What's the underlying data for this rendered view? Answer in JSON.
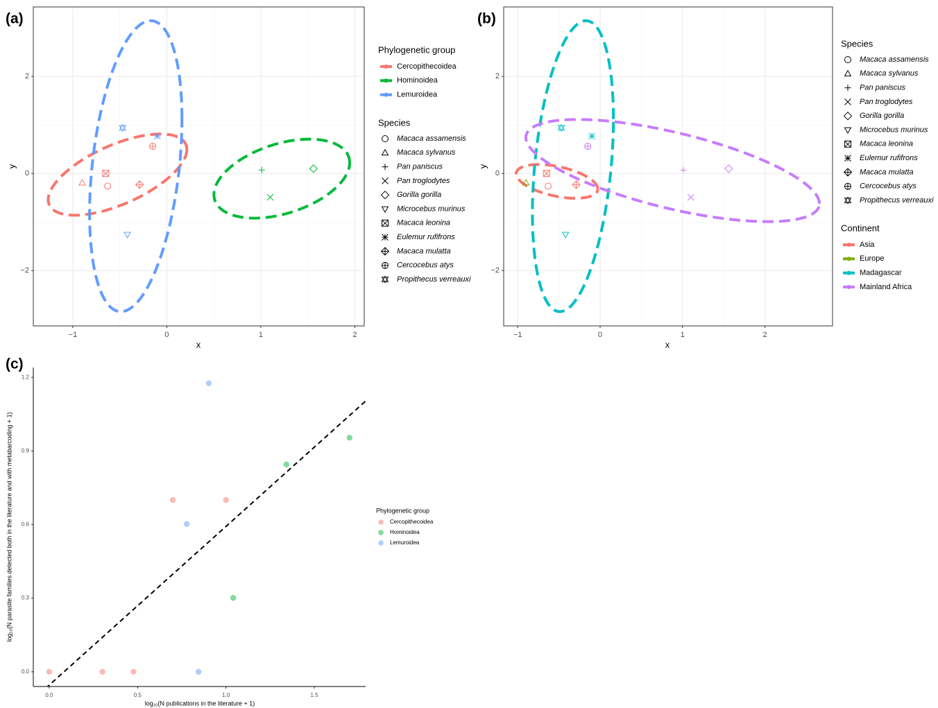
{
  "chart_data": [
    {
      "type": "ellipse-scatter",
      "panel_label": "(a)",
      "xlabel": "x",
      "ylabel": "y",
      "xlim": [
        -1.42,
        2.1
      ],
      "ylim": [
        -3.14,
        3.43
      ],
      "xticks": [
        {
          "value": -1,
          "label": "−1"
        },
        0,
        1,
        2
      ],
      "yticks": [
        {
          "value": -2,
          "label": "−2"
        },
        0,
        2
      ],
      "grid": true,
      "group_legend_title": "Phylogenetic group",
      "groups": [
        {
          "name": "Cercopithecoidea",
          "color": "#F8766D"
        },
        {
          "name": "Hominoidea",
          "color": "#00BA38"
        },
        {
          "name": "Lemuroidea",
          "color": "#619CFF"
        }
      ],
      "shape_legend_title": "Species",
      "species": [
        {
          "name": "Macaca assamensis",
          "shape": "circle"
        },
        {
          "name": "Macaca sylvanus",
          "shape": "triangle"
        },
        {
          "name": "Pan paniscus",
          "shape": "plus"
        },
        {
          "name": "Pan troglodytes",
          "shape": "cross"
        },
        {
          "name": "Gorilla gorilla",
          "shape": "diamond"
        },
        {
          "name": "Microcebus murinus",
          "shape": "triangle-down"
        },
        {
          "name": "Macaca leonina",
          "shape": "square-cross"
        },
        {
          "name": "Eulemur rufifrons",
          "shape": "asterisk"
        },
        {
          "name": "Macaca mulatta",
          "shape": "diamond-plus"
        },
        {
          "name": "Cercocebus atys",
          "shape": "circle-plus"
        },
        {
          "name": "Propithecus verreauxi",
          "shape": "star"
        }
      ],
      "x": [
        -0.63,
        -0.9,
        1.01,
        1.1,
        1.56,
        -0.42,
        -0.65,
        -0.1,
        -0.29,
        -0.15,
        -0.47
      ],
      "y": [
        -0.26,
        -0.19,
        0.07,
        -0.49,
        0.1,
        -1.26,
        0.0,
        0.77,
        -0.23,
        0.56,
        0.94
      ],
      "group": [
        0,
        0,
        1,
        1,
        1,
        2,
        0,
        2,
        0,
        0,
        2
      ]
    },
    {
      "type": "ellipse-scatter",
      "panel_label": "(b)",
      "xlabel": "x",
      "ylabel": "y",
      "xlim": [
        -1.17,
        2.82
      ],
      "ylim": [
        -3.14,
        3.43
      ],
      "xticks": [
        {
          "value": -1,
          "label": "−1"
        },
        0,
        1,
        2
      ],
      "yticks": [
        {
          "value": -2,
          "label": "−2"
        },
        0,
        2
      ],
      "grid": true,
      "group_legend_title": "Continent",
      "groups": [
        {
          "name": "Asia",
          "color": "#F8766D"
        },
        {
          "name": "Europe",
          "color": "#7CAE00"
        },
        {
          "name": "Madagascar",
          "color": "#00BFC4"
        },
        {
          "name": "Mainland Africa",
          "color": "#C77CFF"
        }
      ],
      "shape_legend_title": "Species",
      "species": [
        {
          "name": "Macaca assamensis",
          "shape": "circle"
        },
        {
          "name": "Macaca sylvanus",
          "shape": "triangle"
        },
        {
          "name": "Pan paniscus",
          "shape": "plus"
        },
        {
          "name": "Pan troglodytes",
          "shape": "cross"
        },
        {
          "name": "Gorilla gorilla",
          "shape": "diamond"
        },
        {
          "name": "Microcebus murinus",
          "shape": "triangle-down"
        },
        {
          "name": "Macaca leonina",
          "shape": "square-cross"
        },
        {
          "name": "Eulemur rufifrons",
          "shape": "asterisk"
        },
        {
          "name": "Macaca mulatta",
          "shape": "diamond-plus"
        },
        {
          "name": "Cercocebus atys",
          "shape": "circle-plus"
        },
        {
          "name": "Propithecus verreauxi",
          "shape": "star"
        }
      ],
      "x": [
        -0.63,
        -0.9,
        1.01,
        1.1,
        1.56,
        -0.42,
        -0.65,
        -0.1,
        -0.29,
        -0.15,
        -0.47
      ],
      "y": [
        -0.26,
        -0.19,
        0.07,
        -0.49,
        0.1,
        -1.26,
        0.0,
        0.77,
        -0.23,
        0.56,
        0.94
      ],
      "group": [
        0,
        1,
        3,
        3,
        3,
        2,
        0,
        2,
        0,
        3,
        2
      ]
    },
    {
      "type": "scatter",
      "panel_label": "(c)",
      "xlabel": "log₁₀(N publications in the literature + 1)",
      "ylabel": "log₁₀(N parasite families detected both in the literature and with metabarcoding + 1)",
      "xlim": [
        -0.09,
        1.79
      ],
      "ylim": [
        -0.06,
        1.24
      ],
      "xticks": [
        {
          "value": 0,
          "label": "0.0"
        },
        0.5,
        {
          "value": 1,
          "label": "1.0"
        },
        1.5
      ],
      "yticks": [
        {
          "value": 0,
          "label": "0.0"
        },
        0.3,
        0.6,
        0.9,
        1.2
      ],
      "grid": false,
      "smooth": "lm",
      "alpha": 0.5,
      "legend_title": "Phylogenetic group",
      "series": [
        {
          "name": "Cercopithecoidea",
          "color": "#F8766D",
          "x": [
            0,
            0.301,
            0.477,
            0.699,
            1.0
          ],
          "y": [
            0,
            0,
            0,
            0.7,
            0.7
          ]
        },
        {
          "name": "Hominoidea",
          "color": "#00BA38",
          "x": [
            1.699,
            1.342,
            1.041
          ],
          "y": [
            0.954,
            0.845,
            0.301
          ]
        },
        {
          "name": "Lemuroidea",
          "color": "#619CFF",
          "x": [
            0.903,
            0.778,
            0.845
          ],
          "y": [
            1.176,
            0.602,
            0
          ]
        }
      ]
    }
  ]
}
